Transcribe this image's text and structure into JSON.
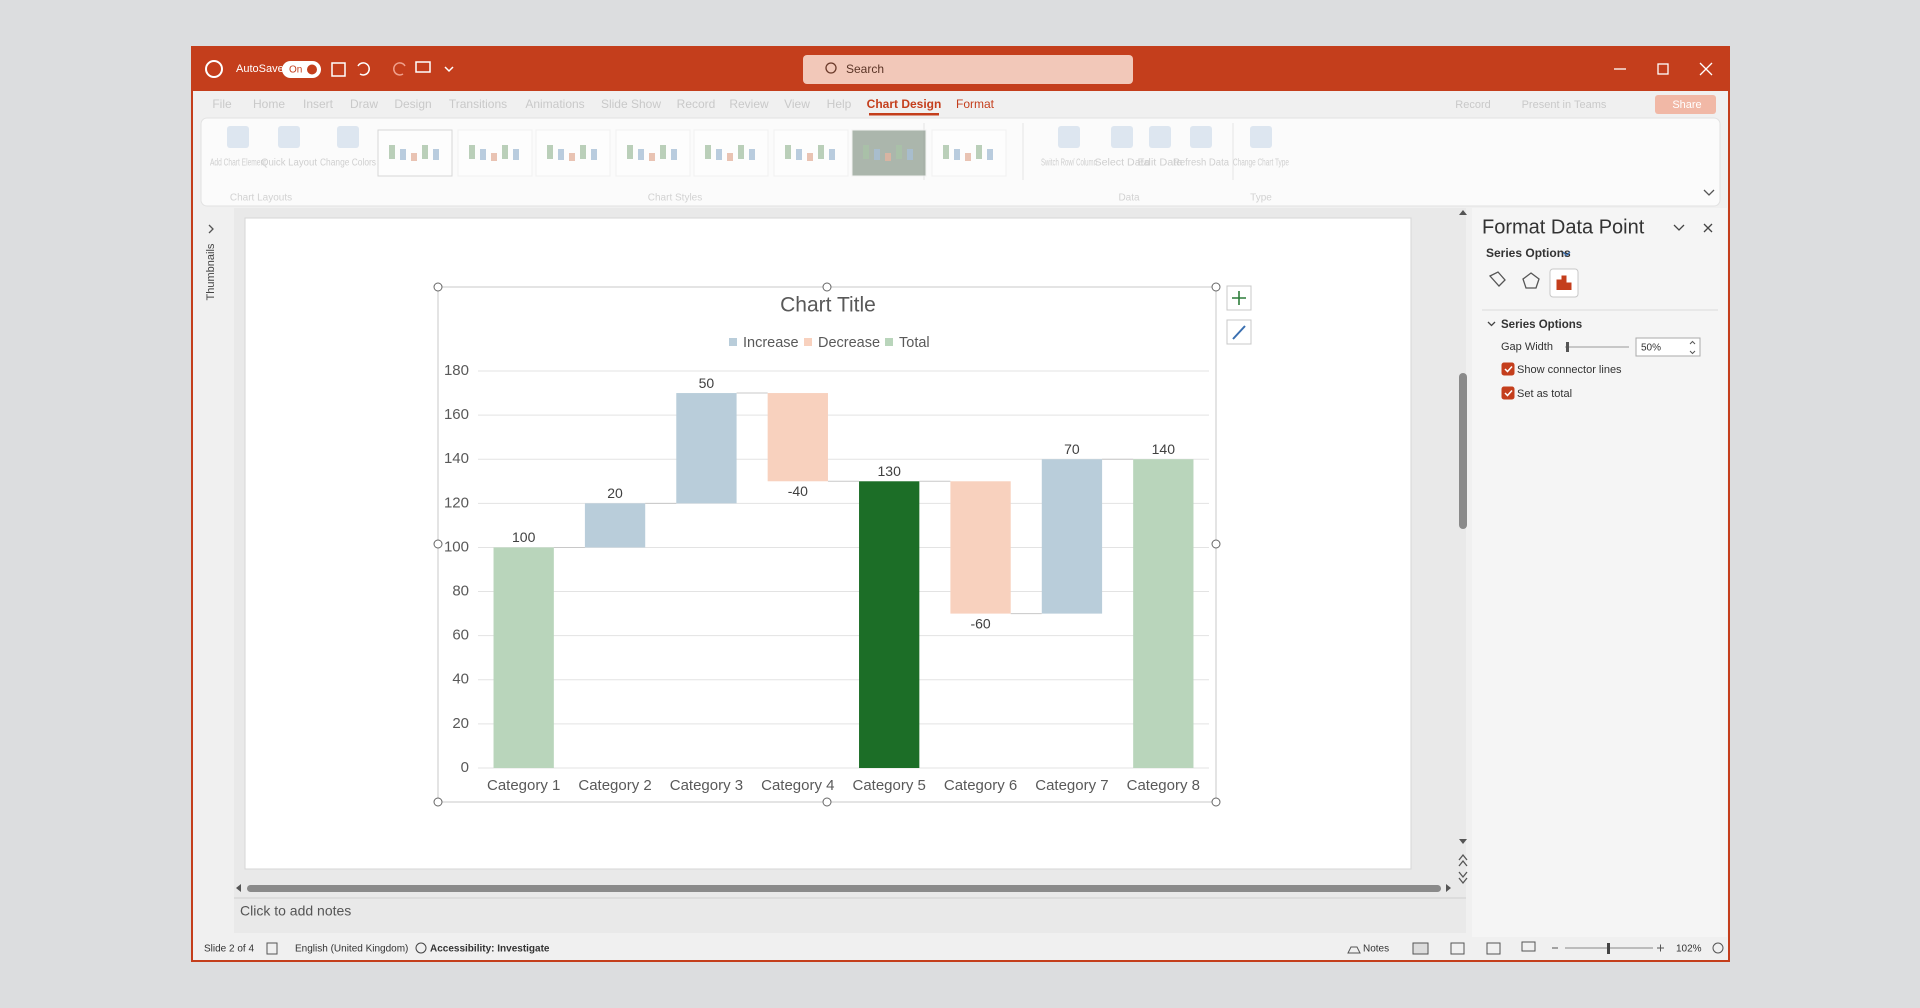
{
  "thumbnails": "Thumbnails",
  "window": {
    "autosave": "AutoSave",
    "autosave_state": "On",
    "search": "Search"
  },
  "tabs": [
    "File",
    "Home",
    "Insert",
    "Draw",
    "Design",
    "Transitions",
    "Animations",
    "Slide Show",
    "Record",
    "Review",
    "View",
    "Help",
    "Chart Design",
    "Format"
  ],
  "tab_actions": [
    "Record",
    "Present in Teams",
    "Share"
  ],
  "ribbon": {
    "buttons": [
      "Add Chart Element",
      "Quick Layout",
      "Change Colors",
      "Switch Row/ Column",
      "Select Data",
      "Edit Data",
      "Refresh Data",
      "Change Chart Type"
    ],
    "groups": [
      "Chart Layouts",
      "Chart Styles",
      "Data",
      "Type"
    ]
  },
  "chart_data": {
    "type": "waterfall",
    "title": "Chart Title",
    "legend": [
      {
        "name": "Increase",
        "color": "#b9cdda"
      },
      {
        "name": "Decrease",
        "color": "#f8d1be"
      },
      {
        "name": "Total",
        "color": "#b9d5bb"
      }
    ],
    "categories": [
      "Category 1",
      "Category 2",
      "Category 3",
      "Category 4",
      "Category 5",
      "Category 6",
      "Category 7",
      "Category 8"
    ],
    "values": [
      100,
      20,
      50,
      -40,
      130,
      -60,
      70,
      140
    ],
    "totals": [
      true,
      false,
      false,
      false,
      true,
      false,
      false,
      true
    ],
    "colors": [
      "#b9d5bb",
      "#b9cdda",
      "#b9cdda",
      "#f8d1be",
      "#1c6e27",
      "#f8d1be",
      "#b9cdda",
      "#b9d5bb"
    ],
    "ylim": [
      0,
      180
    ],
    "yticks": [
      0,
      20,
      40,
      60,
      80,
      100,
      120,
      140,
      160,
      180
    ],
    "grid": true,
    "connector_lines": true
  },
  "pane": {
    "title": "Format Data Point",
    "tab": "Series Options",
    "section": "Series Options",
    "gap_width_label": "Gap Width",
    "gap_width": "50%",
    "options": [
      {
        "label": "Show connector lines",
        "checked": true
      },
      {
        "label": "Set as total",
        "checked": true
      }
    ]
  },
  "notes": "Click to add notes",
  "status": {
    "slide": "Slide 2 of 4",
    "language": "English (United Kingdom)",
    "accessibility": "Accessibility: Investigate",
    "notes": "Notes",
    "zoom": "102%"
  }
}
